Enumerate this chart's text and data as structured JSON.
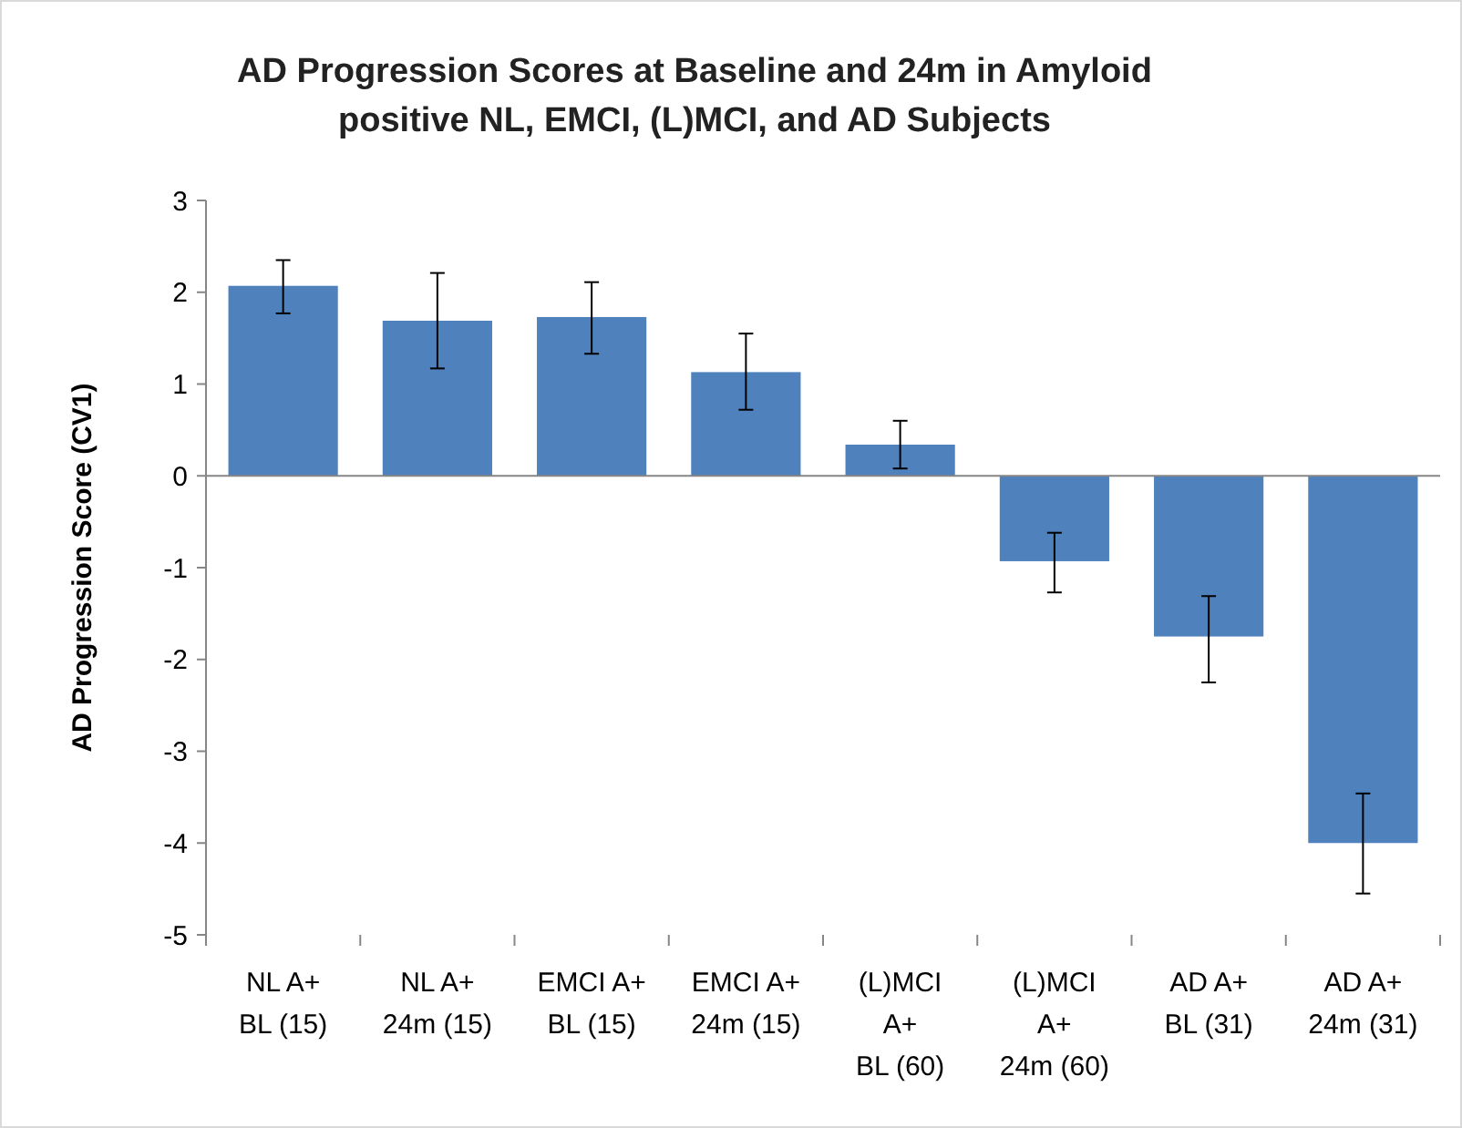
{
  "chart_data": {
    "type": "bar",
    "title": "AD Progression Scores at Baseline and 24m in Amyloid\npositive NL, EMCI, (L)MCI, and AD Subjects",
    "ylabel": "AD Progression Score (CV1)",
    "categories": [
      "NL A+\nBL (15)",
      "NL A+\n24m (15)",
      "EMCI A+\nBL (15)",
      "EMCI A+\n24m (15)",
      "(L)MCI\nA+\nBL (60)",
      "(L)MCI\nA+\n24m (60)",
      "AD A+\nBL (31)",
      "AD A+\n24m (31)"
    ],
    "values": [
      2.07,
      1.69,
      1.73,
      1.13,
      0.34,
      -0.93,
      -1.75,
      -4.0
    ],
    "errors": [
      [
        1.77,
        2.35
      ],
      [
        1.17,
        2.21
      ],
      [
        1.33,
        2.11
      ],
      [
        0.72,
        1.55
      ],
      [
        0.08,
        0.6
      ],
      [
        -1.27,
        -0.62
      ],
      [
        -2.25,
        -1.31
      ],
      [
        -4.55,
        -3.46
      ]
    ],
    "color": "#4f81bd",
    "ylim": [
      -5,
      3
    ],
    "yticks": [
      -5,
      -4,
      -3,
      -2,
      -1,
      0,
      1,
      2,
      3
    ]
  }
}
